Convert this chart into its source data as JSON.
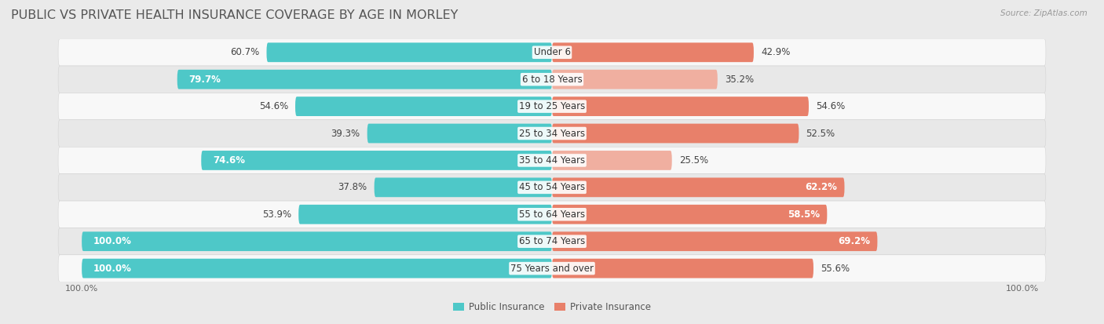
{
  "title": "PUBLIC VS PRIVATE HEALTH INSURANCE COVERAGE BY AGE IN MORLEY",
  "source": "Source: ZipAtlas.com",
  "categories": [
    "Under 6",
    "6 to 18 Years",
    "19 to 25 Years",
    "25 to 34 Years",
    "35 to 44 Years",
    "45 to 54 Years",
    "55 to 64 Years",
    "65 to 74 Years",
    "75 Years and over"
  ],
  "public_values": [
    60.7,
    79.7,
    54.6,
    39.3,
    74.6,
    37.8,
    53.9,
    100.0,
    100.0
  ],
  "private_values": [
    42.9,
    35.2,
    54.6,
    52.5,
    25.5,
    62.2,
    58.5,
    69.2,
    55.6
  ],
  "public_color": "#4EC8C8",
  "private_color": "#E8806A",
  "private_color_light": "#F0AFA0",
  "bg_color": "#EAEAEA",
  "row_bg_white": "#F8F8F8",
  "row_bg_gray": "#E8E8E8",
  "max_value": 100.0,
  "title_fontsize": 11.5,
  "label_fontsize": 8.5,
  "tick_fontsize": 8,
  "source_fontsize": 7.5,
  "pub_label_white_threshold": 65,
  "priv_label_white_threshold": 58
}
